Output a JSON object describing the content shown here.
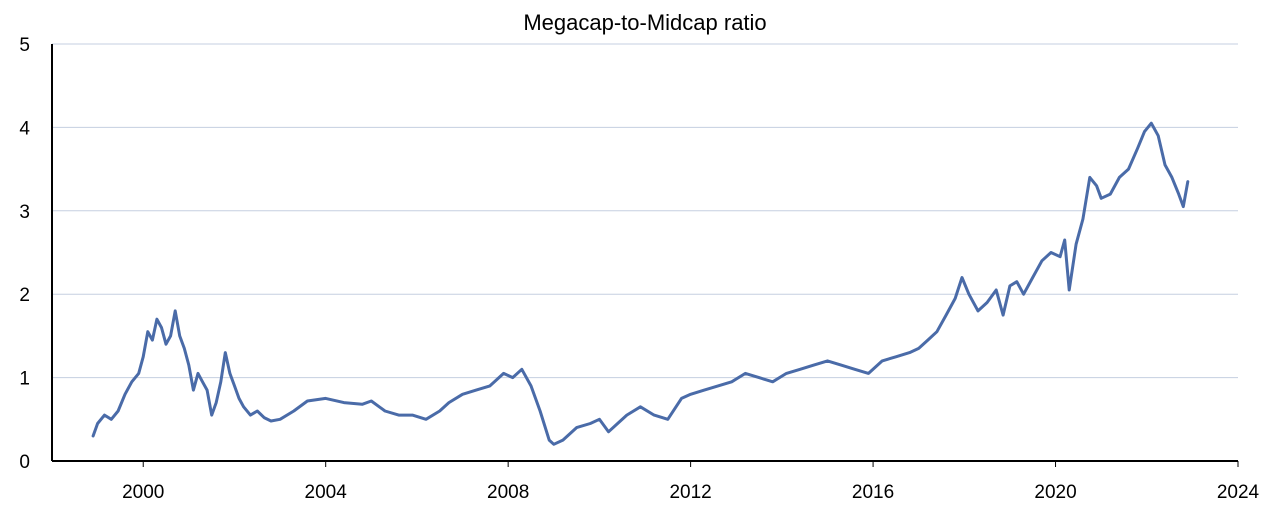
{
  "chart_data": {
    "type": "line",
    "title": "Megacap-to-Midcap ratio",
    "xlabel": "",
    "ylabel": "",
    "xlim": [
      1998.0,
      2024.0
    ],
    "ylim": [
      0,
      5
    ],
    "x_ticks": [
      2000,
      2004,
      2008,
      2012,
      2016,
      2020,
      2024
    ],
    "y_ticks": [
      0,
      1,
      2,
      3,
      4,
      5
    ],
    "grid": "horizontal",
    "legend": "none",
    "colors": {
      "line": "#4a6ba8",
      "grid": "#c5cfe0",
      "axis": "#000000"
    },
    "series": [
      {
        "x": [
          1998.9,
          1999.0,
          1999.15,
          1999.3,
          1999.45,
          1999.6,
          1999.75,
          1999.9,
          2000.0,
          2000.1,
          2000.2,
          2000.3,
          2000.4,
          2000.5,
          2000.6,
          2000.7,
          2000.8,
          2000.9,
          2001.0,
          2001.1,
          2001.2,
          2001.3,
          2001.4,
          2001.5,
          2001.6,
          2001.7,
          2001.8,
          2001.9,
          2002.0,
          2002.1,
          2002.2,
          2002.35,
          2002.5,
          2002.65,
          2002.8,
          2003.0,
          2003.3,
          2003.6,
          2004.0,
          2004.4,
          2004.8,
          2005.0,
          2005.3,
          2005.6,
          2005.9,
          2006.2,
          2006.5,
          2006.7,
          2007.0,
          2007.3,
          2007.6,
          2007.9,
          2008.1,
          2008.3,
          2008.5,
          2008.7,
          2008.9,
          2009.0,
          2009.2,
          2009.5,
          2009.8,
          2010.0,
          2010.2,
          2010.4,
          2010.6,
          2010.9,
          2011.2,
          2011.5,
          2011.8,
          2012.0,
          2012.3,
          2012.6,
          2012.9,
          2013.2,
          2013.5,
          2013.8,
          2014.1,
          2014.4,
          2014.7,
          2015.0,
          2015.3,
          2015.6,
          2015.9,
          2016.2,
          2016.5,
          2016.8,
          2017.0,
          2017.2,
          2017.4,
          2017.6,
          2017.8,
          2017.95,
          2018.1,
          2018.3,
          2018.5,
          2018.7,
          2018.85,
          2019.0,
          2019.15,
          2019.3,
          2019.5,
          2019.7,
          2019.9,
          2020.1,
          2020.2,
          2020.3,
          2020.45,
          2020.6,
          2020.75,
          2020.9,
          2021.0,
          2021.2,
          2021.4,
          2021.6,
          2021.8,
          2021.95,
          2022.1,
          2022.25,
          2022.4,
          2022.55,
          2022.7,
          2022.8,
          2022.9
        ],
        "y": [
          0.3,
          0.45,
          0.55,
          0.5,
          0.6,
          0.8,
          0.95,
          1.05,
          1.25,
          1.55,
          1.45,
          1.7,
          1.6,
          1.4,
          1.5,
          1.8,
          1.5,
          1.35,
          1.15,
          0.85,
          1.05,
          0.95,
          0.85,
          0.55,
          0.7,
          0.95,
          1.3,
          1.05,
          0.9,
          0.75,
          0.65,
          0.55,
          0.6,
          0.52,
          0.48,
          0.5,
          0.6,
          0.72,
          0.75,
          0.7,
          0.68,
          0.72,
          0.6,
          0.55,
          0.55,
          0.5,
          0.6,
          0.7,
          0.8,
          0.85,
          0.9,
          1.05,
          1.0,
          1.1,
          0.9,
          0.6,
          0.25,
          0.2,
          0.25,
          0.4,
          0.45,
          0.5,
          0.35,
          0.45,
          0.55,
          0.65,
          0.55,
          0.5,
          0.75,
          0.8,
          0.85,
          0.9,
          0.95,
          1.05,
          1.0,
          0.95,
          1.05,
          1.1,
          1.15,
          1.2,
          1.15,
          1.1,
          1.05,
          1.2,
          1.25,
          1.3,
          1.35,
          1.45,
          1.55,
          1.75,
          1.95,
          2.2,
          2.0,
          1.8,
          1.9,
          2.05,
          1.75,
          2.1,
          2.15,
          2.0,
          2.2,
          2.4,
          2.5,
          2.45,
          2.65,
          2.05,
          2.6,
          2.9,
          3.4,
          3.3,
          3.15,
          3.2,
          3.4,
          3.5,
          3.75,
          3.95,
          4.05,
          3.9,
          3.55,
          3.4,
          3.2,
          3.05,
          3.35
        ]
      }
    ]
  }
}
